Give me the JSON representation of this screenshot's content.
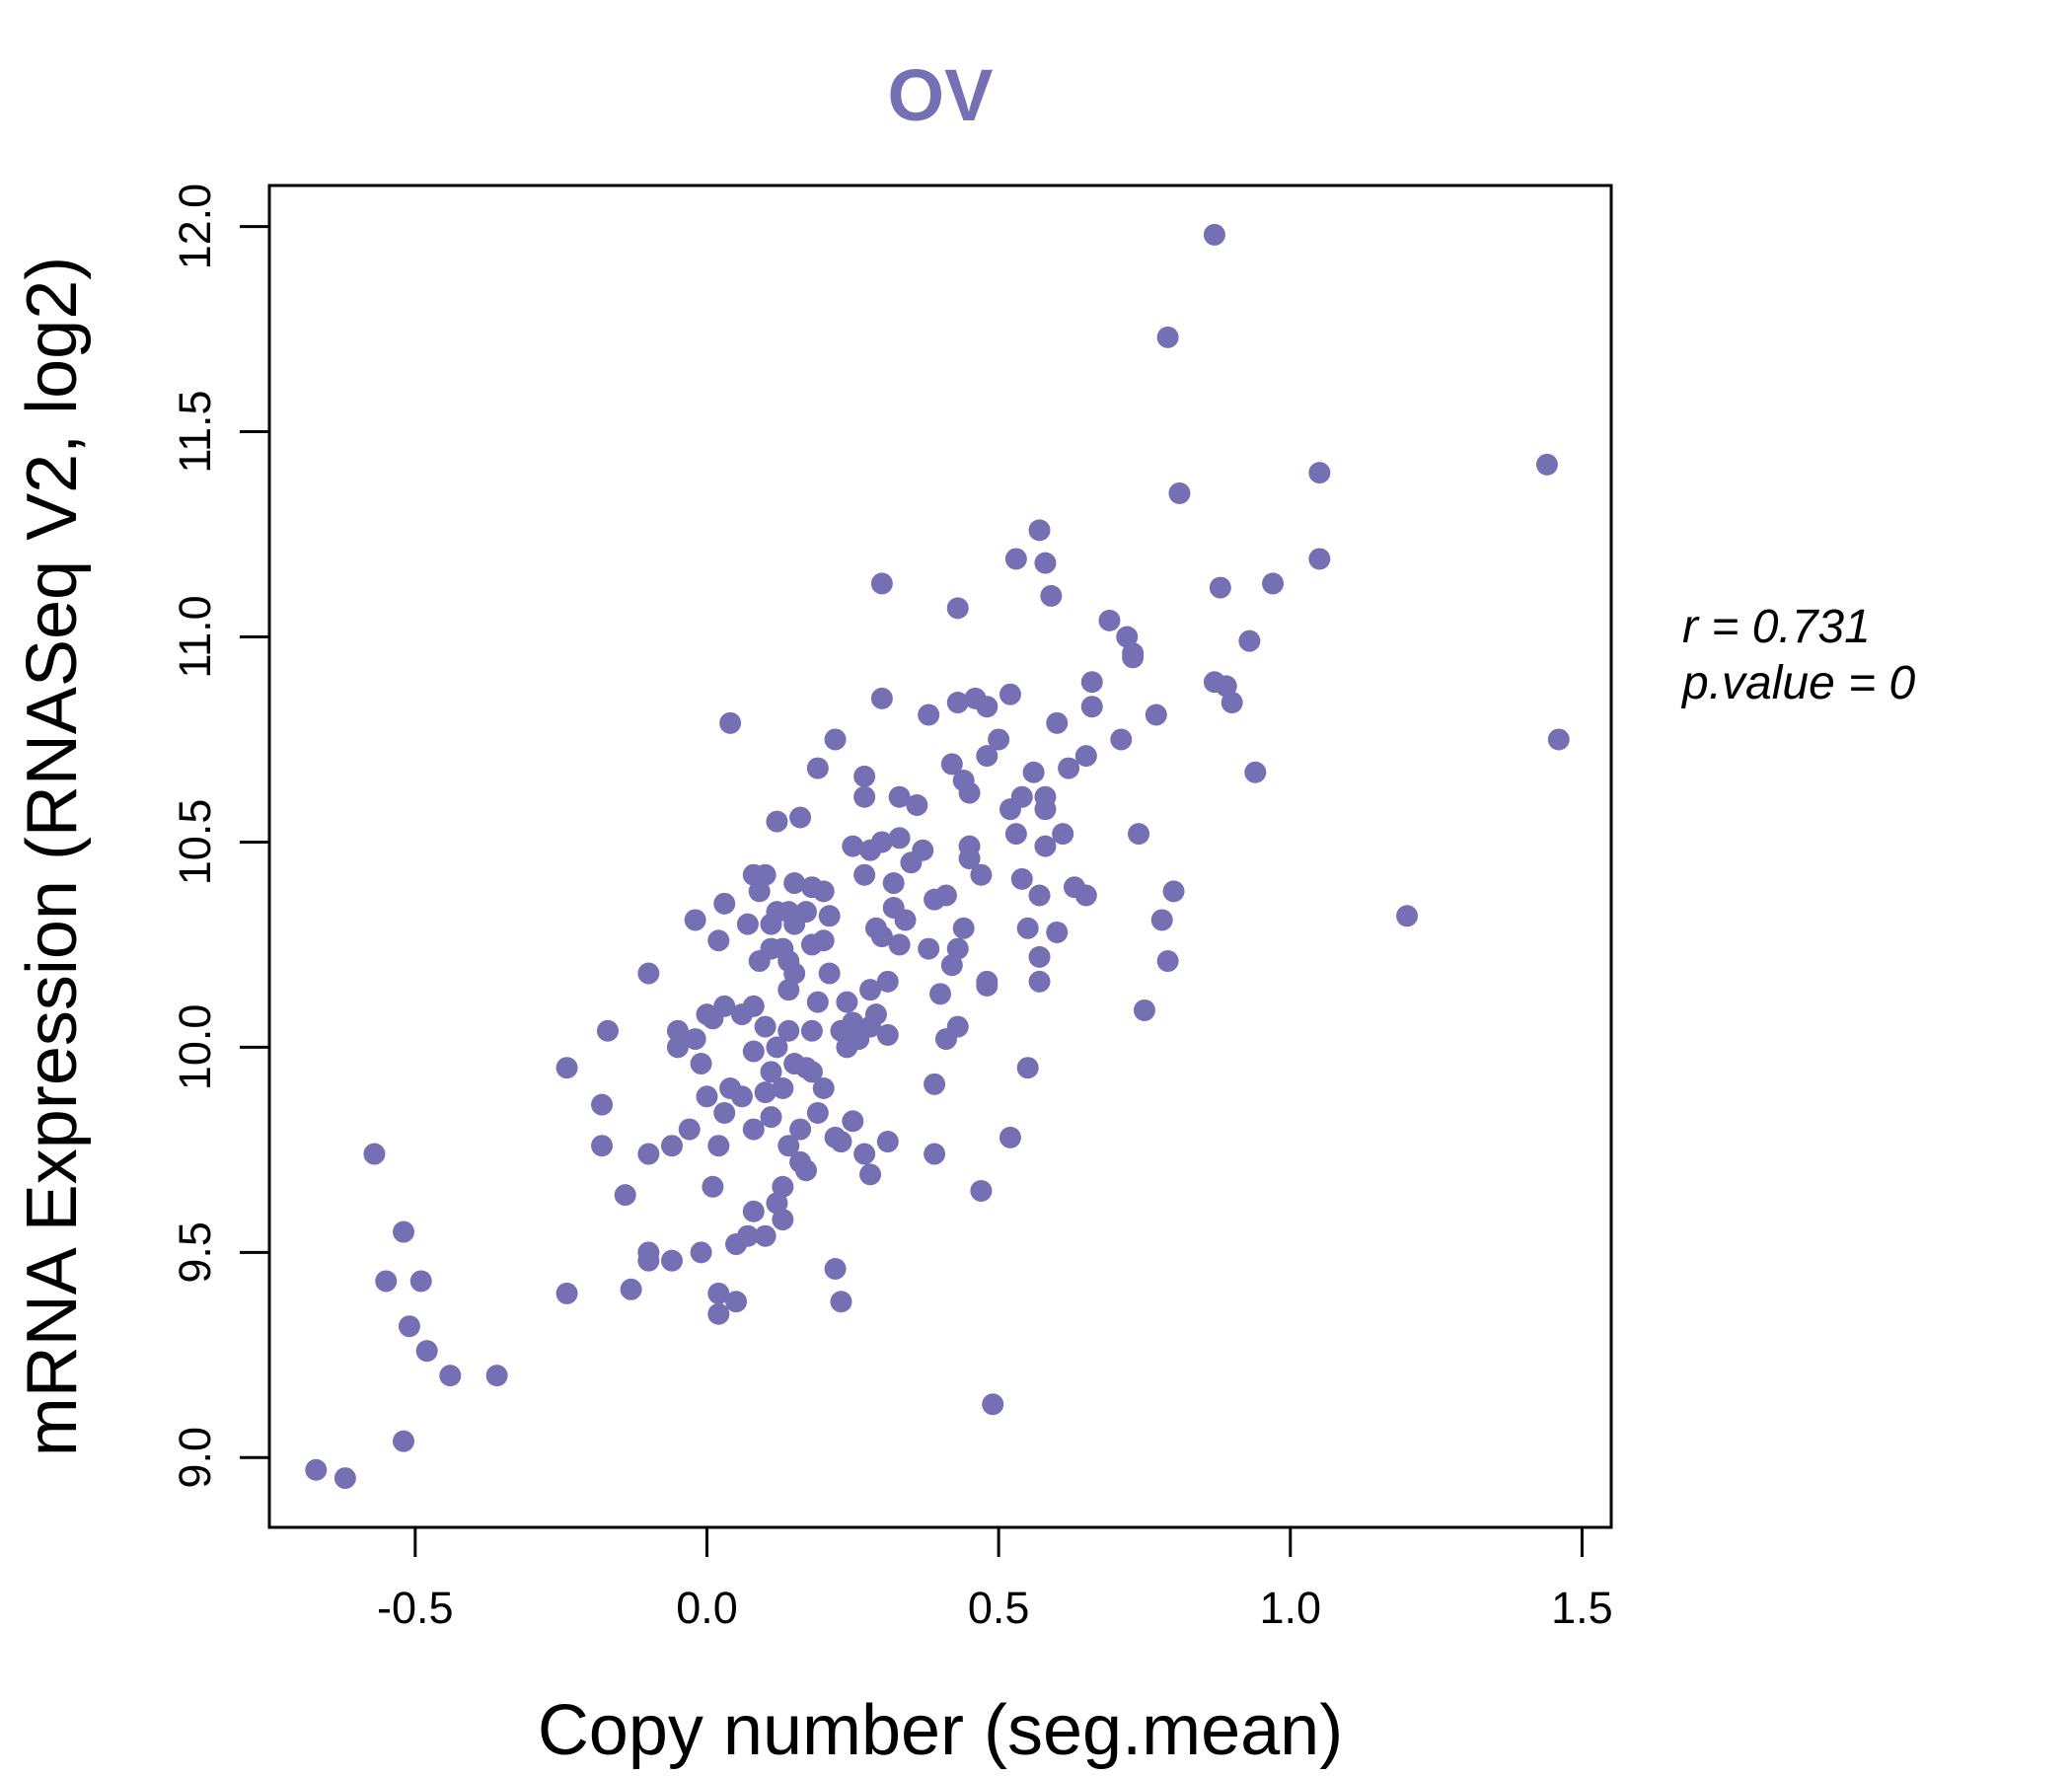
{
  "chart_data": {
    "type": "scatter",
    "title": "OV",
    "xlabel": "Copy number (seg.mean)",
    "ylabel": "mRNA Expression (RNASeq V2, log2)",
    "xlim": [
      -0.75,
      1.55
    ],
    "ylim": [
      8.83,
      12.1
    ],
    "xticks": [
      -0.5,
      0.0,
      0.5,
      1.0,
      1.5
    ],
    "xtick_labels": [
      "-0.5",
      "0.0",
      "0.5",
      "1.0",
      "1.5"
    ],
    "yticks": [
      9.0,
      9.5,
      10.0,
      10.5,
      11.0,
      11.5,
      12.0
    ],
    "ytick_labels": [
      "9.0",
      "9.5",
      "10.0",
      "10.5",
      "11.0",
      "11.5",
      "12.0"
    ],
    "stats": {
      "r_label": "r = 0.731",
      "p_label": "p.value = 0"
    },
    "colors": {
      "point": "#7570b3",
      "title": "#7570b3",
      "axis": "#000000"
    },
    "points": [
      [
        -0.67,
        8.97
      ],
      [
        -0.62,
        8.95
      ],
      [
        -0.57,
        9.74
      ],
      [
        -0.55,
        9.43
      ],
      [
        -0.52,
        9.55
      ],
      [
        -0.51,
        9.32
      ],
      [
        -0.52,
        9.04
      ],
      [
        -0.49,
        9.43
      ],
      [
        -0.48,
        9.26
      ],
      [
        -0.44,
        9.2
      ],
      [
        -0.36,
        9.2
      ],
      [
        -0.24,
        9.4
      ],
      [
        -0.24,
        9.95
      ],
      [
        -0.18,
        9.86
      ],
      [
        -0.18,
        9.76
      ],
      [
        -0.17,
        10.04
      ],
      [
        -0.14,
        9.64
      ],
      [
        -0.13,
        9.41
      ],
      [
        -0.1,
        9.48
      ],
      [
        -0.1,
        9.5
      ],
      [
        -0.1,
        9.74
      ],
      [
        -0.1,
        10.18
      ],
      [
        -0.06,
        9.76
      ],
      [
        -0.06,
        9.48
      ],
      [
        -0.05,
        10.0
      ],
      [
        -0.05,
        10.04
      ],
      [
        -0.03,
        9.8
      ],
      [
        -0.02,
        10.31
      ],
      [
        -0.02,
        10.02
      ],
      [
        -0.01,
        9.96
      ],
      [
        -0.01,
        9.5
      ],
      [
        0.0,
        10.08
      ],
      [
        0.0,
        9.88
      ],
      [
        0.01,
        9.66
      ],
      [
        0.01,
        10.07
      ],
      [
        0.02,
        9.35
      ],
      [
        0.02,
        9.4
      ],
      [
        0.02,
        9.76
      ],
      [
        0.02,
        10.26
      ],
      [
        0.03,
        10.1
      ],
      [
        0.03,
        10.35
      ],
      [
        0.03,
        9.84
      ],
      [
        0.04,
        10.79
      ],
      [
        0.04,
        9.9
      ],
      [
        0.05,
        9.38
      ],
      [
        0.05,
        9.52
      ],
      [
        0.06,
        9.88
      ],
      [
        0.06,
        10.08
      ],
      [
        0.07,
        9.54
      ],
      [
        0.07,
        10.3
      ],
      [
        0.08,
        9.8
      ],
      [
        0.08,
        9.6
      ],
      [
        0.08,
        10.1
      ],
      [
        0.08,
        10.42
      ],
      [
        0.08,
        9.99
      ],
      [
        0.09,
        10.21
      ],
      [
        0.09,
        10.38
      ],
      [
        0.1,
        9.54
      ],
      [
        0.1,
        10.05
      ],
      [
        0.1,
        9.89
      ],
      [
        0.1,
        10.42
      ],
      [
        0.11,
        10.24
      ],
      [
        0.11,
        10.3
      ],
      [
        0.11,
        9.94
      ],
      [
        0.11,
        9.83
      ],
      [
        0.12,
        10.55
      ],
      [
        0.12,
        10.33
      ],
      [
        0.12,
        9.62
      ],
      [
        0.12,
        10.0
      ],
      [
        0.13,
        9.58
      ],
      [
        0.13,
        10.24
      ],
      [
        0.13,
        9.9
      ],
      [
        0.13,
        9.66
      ],
      [
        0.14,
        10.21
      ],
      [
        0.14,
        10.14
      ],
      [
        0.14,
        10.33
      ],
      [
        0.14,
        9.76
      ],
      [
        0.14,
        10.04
      ],
      [
        0.15,
        10.4
      ],
      [
        0.15,
        9.96
      ],
      [
        0.15,
        10.3
      ],
      [
        0.15,
        10.18
      ],
      [
        0.16,
        9.72
      ],
      [
        0.16,
        10.56
      ],
      [
        0.16,
        9.8
      ],
      [
        0.17,
        9.95
      ],
      [
        0.17,
        10.33
      ],
      [
        0.17,
        9.7
      ],
      [
        0.18,
        10.39
      ],
      [
        0.18,
        10.25
      ],
      [
        0.18,
        10.04
      ],
      [
        0.18,
        9.94
      ],
      [
        0.19,
        10.11
      ],
      [
        0.19,
        10.68
      ],
      [
        0.19,
        9.84
      ],
      [
        0.2,
        9.9
      ],
      [
        0.2,
        10.38
      ],
      [
        0.2,
        10.26
      ],
      [
        0.21,
        10.18
      ],
      [
        0.21,
        10.32
      ],
      [
        0.22,
        9.78
      ],
      [
        0.22,
        10.75
      ],
      [
        0.22,
        9.46
      ],
      [
        0.23,
        9.38
      ],
      [
        0.23,
        9.77
      ],
      [
        0.23,
        10.04
      ],
      [
        0.24,
        10.11
      ],
      [
        0.24,
        10.0
      ],
      [
        0.25,
        9.82
      ],
      [
        0.25,
        10.49
      ],
      [
        0.25,
        10.06
      ],
      [
        0.26,
        10.02
      ],
      [
        0.27,
        10.66
      ],
      [
        0.27,
        10.61
      ],
      [
        0.27,
        9.74
      ],
      [
        0.27,
        10.42
      ],
      [
        0.28,
        10.05
      ],
      [
        0.28,
        10.48
      ],
      [
        0.28,
        10.14
      ],
      [
        0.28,
        9.69
      ],
      [
        0.29,
        10.29
      ],
      [
        0.29,
        10.08
      ],
      [
        0.3,
        11.13
      ],
      [
        0.3,
        10.85
      ],
      [
        0.3,
        10.5
      ],
      [
        0.3,
        10.27
      ],
      [
        0.31,
        10.16
      ],
      [
        0.31,
        9.77
      ],
      [
        0.31,
        10.03
      ],
      [
        0.32,
        10.4
      ],
      [
        0.32,
        10.34
      ],
      [
        0.33,
        10.25
      ],
      [
        0.33,
        10.51
      ],
      [
        0.33,
        10.61
      ],
      [
        0.34,
        10.31
      ],
      [
        0.35,
        10.45
      ],
      [
        0.36,
        10.59
      ],
      [
        0.37,
        10.48
      ],
      [
        0.38,
        10.24
      ],
      [
        0.38,
        10.81
      ],
      [
        0.39,
        9.74
      ],
      [
        0.39,
        10.36
      ],
      [
        0.39,
        9.91
      ],
      [
        0.4,
        10.13
      ],
      [
        0.41,
        10.37
      ],
      [
        0.41,
        10.02
      ],
      [
        0.42,
        10.69
      ],
      [
        0.42,
        10.2
      ],
      [
        0.43,
        10.05
      ],
      [
        0.43,
        10.24
      ],
      [
        0.43,
        11.07
      ],
      [
        0.43,
        10.84
      ],
      [
        0.44,
        10.29
      ],
      [
        0.44,
        10.65
      ],
      [
        0.45,
        10.49
      ],
      [
        0.45,
        10.62
      ],
      [
        0.45,
        10.46
      ],
      [
        0.46,
        10.85
      ],
      [
        0.47,
        9.65
      ],
      [
        0.47,
        10.42
      ],
      [
        0.48,
        10.16
      ],
      [
        0.48,
        10.15
      ],
      [
        0.48,
        10.71
      ],
      [
        0.48,
        10.83
      ],
      [
        0.49,
        9.13
      ],
      [
        0.5,
        10.75
      ],
      [
        0.52,
        10.86
      ],
      [
        0.52,
        10.58
      ],
      [
        0.52,
        9.78
      ],
      [
        0.53,
        11.19
      ],
      [
        0.53,
        10.52
      ],
      [
        0.54,
        10.41
      ],
      [
        0.54,
        10.61
      ],
      [
        0.55,
        9.95
      ],
      [
        0.55,
        10.29
      ],
      [
        0.56,
        10.67
      ],
      [
        0.57,
        10.37
      ],
      [
        0.57,
        10.22
      ],
      [
        0.57,
        10.16
      ],
      [
        0.57,
        11.26
      ],
      [
        0.58,
        11.18
      ],
      [
        0.58,
        10.61
      ],
      [
        0.58,
        10.49
      ],
      [
        0.58,
        10.58
      ],
      [
        0.59,
        11.1
      ],
      [
        0.6,
        10.79
      ],
      [
        0.6,
        10.28
      ],
      [
        0.61,
        10.52
      ],
      [
        0.62,
        10.68
      ],
      [
        0.63,
        10.39
      ],
      [
        0.65,
        10.37
      ],
      [
        0.65,
        10.71
      ],
      [
        0.66,
        10.89
      ],
      [
        0.66,
        10.83
      ],
      [
        0.69,
        11.04
      ],
      [
        0.71,
        10.75
      ],
      [
        0.72,
        11.0
      ],
      [
        0.73,
        10.95
      ],
      [
        0.73,
        10.96
      ],
      [
        0.74,
        10.52
      ],
      [
        0.75,
        10.09
      ],
      [
        0.77,
        10.81
      ],
      [
        0.78,
        10.31
      ],
      [
        0.79,
        10.21
      ],
      [
        0.79,
        11.73
      ],
      [
        0.8,
        10.38
      ],
      [
        0.81,
        11.35
      ],
      [
        0.87,
        11.98
      ],
      [
        0.87,
        10.89
      ],
      [
        0.88,
        11.12
      ],
      [
        0.89,
        10.88
      ],
      [
        0.9,
        10.84
      ],
      [
        0.93,
        10.99
      ],
      [
        0.94,
        10.67
      ],
      [
        0.97,
        11.13
      ],
      [
        1.05,
        11.4
      ],
      [
        1.05,
        11.19
      ],
      [
        1.2,
        10.32
      ],
      [
        1.44,
        11.42
      ],
      [
        1.46,
        10.75
      ]
    ]
  }
}
